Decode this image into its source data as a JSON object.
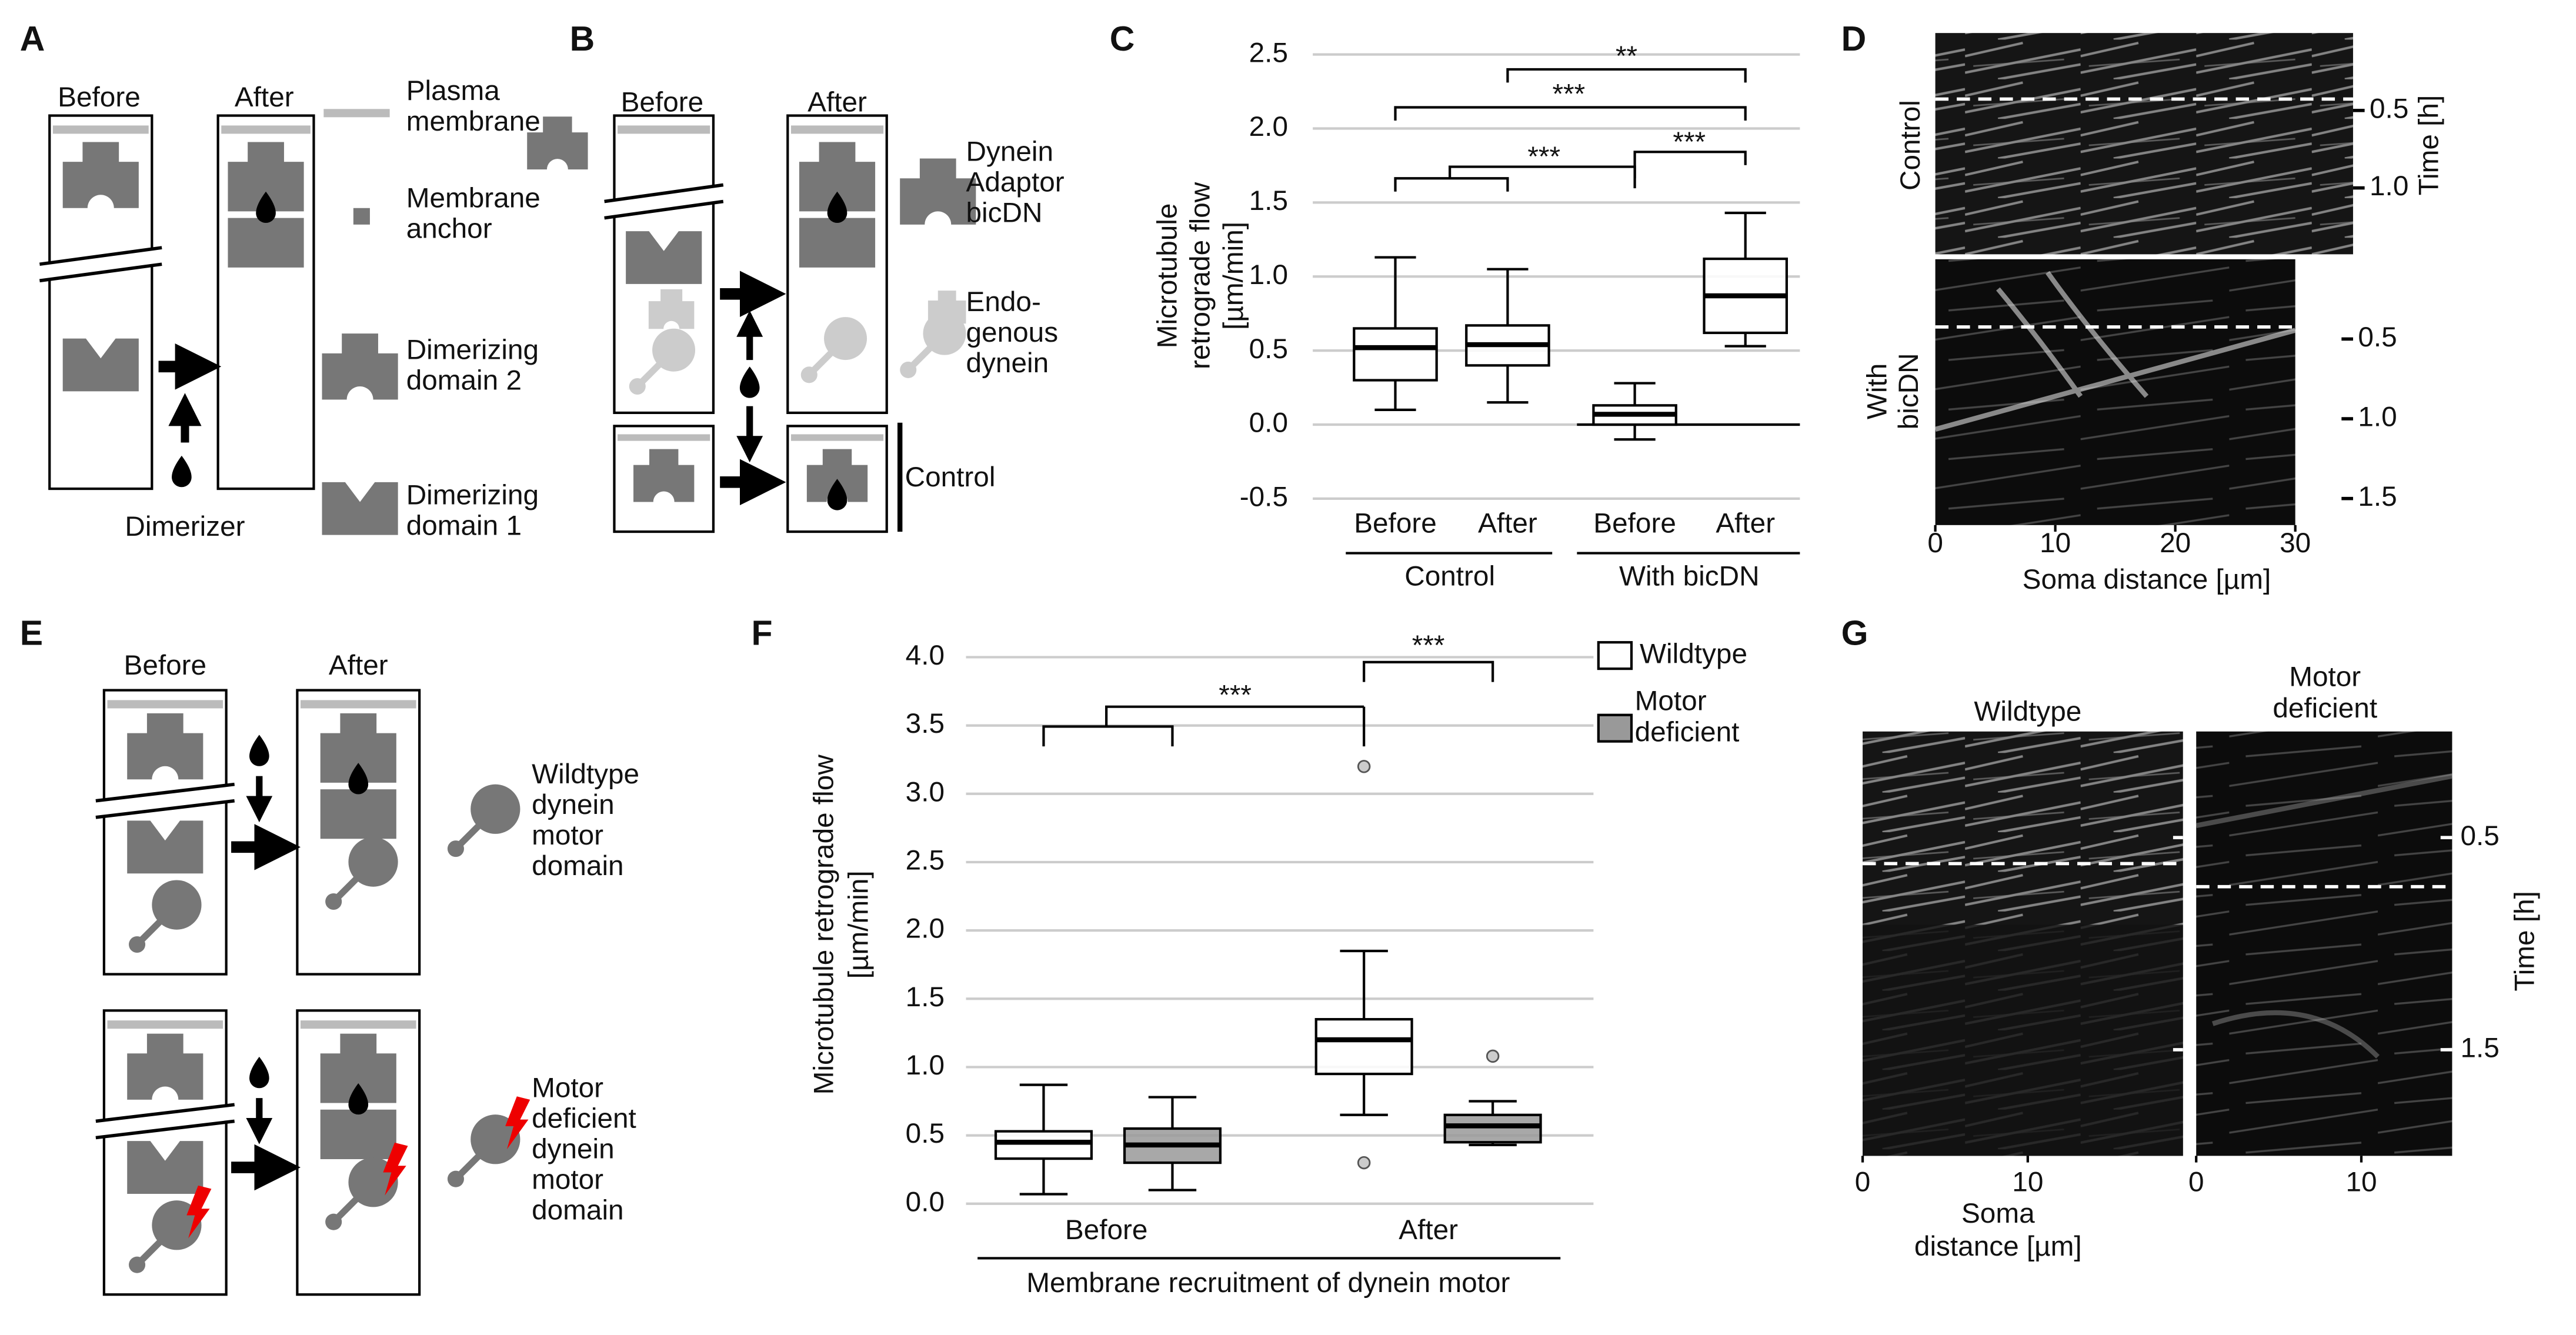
{
  "figure": {
    "panel_labels": [
      "A",
      "B",
      "C",
      "D",
      "E",
      "F",
      "G"
    ]
  },
  "panel_a": {
    "before": "Before",
    "after": "After",
    "dimerizer": "Dimerizer",
    "legend": [
      [
        "Plasma",
        "membrane"
      ],
      [
        "Membrane",
        "anchor"
      ],
      [
        "Dimerizing",
        "domain 2"
      ],
      [
        "Dimerizing",
        "domain 1"
      ]
    ]
  },
  "panel_b": {
    "before": "Before",
    "after": "After",
    "control": "Control",
    "legend": [
      [
        "Dynein",
        "Adaptor",
        "bicDN"
      ],
      [
        "Endo-",
        "genous",
        "dynein"
      ]
    ]
  },
  "panel_d": {
    "rows": [
      [
        "Control"
      ],
      [
        "With",
        "bicDN"
      ]
    ],
    "ylabel": "Time [h]",
    "xlabel": "Soma distance [µm]",
    "xlim": [
      0,
      30
    ],
    "xticks": [
      0,
      10,
      20,
      30
    ],
    "top_ylim": [
      0,
      1.4
    ],
    "top_yticks": [
      0.5,
      {
        "value": 1,
        "label": "1.0"
      }
    ],
    "bottom_ylim": [
      0,
      1.65
    ],
    "bottom_yticks": [
      0.5,
      {
        "value": 1,
        "label": "1.0"
      },
      1.5
    ]
  },
  "panel_e": {
    "before": "Before",
    "after": "After",
    "legend": [
      [
        "Wildtype",
        "dynein",
        "motor",
        "domain"
      ],
      [
        "Motor",
        "deficient",
        "dynein",
        "motor",
        "domain"
      ]
    ]
  },
  "panel_g": {
    "columns": [
      [
        "Wildtype"
      ],
      [
        "Motor",
        "deficient"
      ]
    ],
    "ylabel": "Time [h]",
    "xlabel": [
      "Soma",
      "distance [µm]"
    ],
    "left_xlim": [
      0,
      19.4
    ],
    "right_xlim": [
      0,
      15.5
    ],
    "xticks": [
      0,
      10
    ],
    "ylim": [
      0,
      2
    ],
    "yticks": [
      0.5,
      1.5
    ]
  },
  "chart_data": [
    {
      "type": "box",
      "ylabel": [
        "Microtubule",
        "retrograde flow",
        "[µm/min]"
      ],
      "categories": [
        "Before",
        "After",
        "Before",
        "After"
      ],
      "groups": [
        "Control",
        "With bicDN"
      ],
      "ylim": [
        -0.5,
        2.5
      ],
      "yticks": [
        -0.5,
        {
          "value": 0,
          "label": "0.0"
        },
        0.5,
        {
          "value": 1,
          "label": "1.0"
        },
        1.5,
        {
          "value": 2,
          "label": "2.0"
        },
        2.5
      ],
      "grid": true,
      "color": "#ffffff",
      "boxes": [
        {
          "whislo": 0.1,
          "q1": 0.3,
          "med": 0.52,
          "q3": 0.65,
          "whishi": 1.13
        },
        {
          "whislo": 0.15,
          "q1": 0.4,
          "med": 0.54,
          "q3": 0.67,
          "whishi": 1.05
        },
        {
          "whislo": -0.1,
          "q1": 0.0,
          "med": 0.07,
          "q3": 0.13,
          "whishi": 0.28
        },
        {
          "whislo": 0.53,
          "q1": 0.62,
          "med": 0.87,
          "q3": 1.12,
          "whishi": 1.43
        }
      ],
      "significance": [
        "**",
        "***",
        "***",
        "***"
      ]
    },
    {
      "type": "box",
      "ylabel": [
        "Microtubule retrograde flow",
        "[µm/min]"
      ],
      "xlabel": "Membrane recruitment of dynein motor",
      "categories": [
        "Before",
        "After"
      ],
      "ylim": [
        0,
        4
      ],
      "yticks": [
        {
          "value": 0,
          "label": "0.0"
        },
        0.5,
        {
          "value": 1,
          "label": "1.0"
        },
        1.5,
        {
          "value": 2,
          "label": "2.0"
        },
        2.5,
        {
          "value": 3,
          "label": "3.0"
        },
        3.5,
        {
          "value": 4,
          "label": "4.0"
        }
      ],
      "grid": true,
      "series": [
        {
          "name": "Wildtype",
          "color": "#ffffff",
          "boxes": [
            {
              "whislo": 0.07,
              "q1": 0.33,
              "med": 0.45,
              "q3": 0.53,
              "whishi": 0.87
            },
            {
              "whislo": 0.65,
              "q1": 0.95,
              "med": 1.2,
              "q3": 1.35,
              "whishi": 1.85
            }
          ],
          "outliers": [
            [],
            [
              3.2,
              0.3
            ]
          ]
        },
        {
          "name": "Motor deficient",
          "color": "#999999",
          "boxes": [
            {
              "whislo": 0.1,
              "q1": 0.3,
              "med": 0.43,
              "q3": 0.55,
              "whishi": 0.78
            },
            {
              "whislo": 0.43,
              "q1": 0.45,
              "med": 0.57,
              "q3": 0.65,
              "whishi": 0.75
            }
          ],
          "outliers": [
            [],
            [
              1.08
            ]
          ]
        }
      ],
      "significance": [
        "***",
        "***"
      ]
    }
  ]
}
